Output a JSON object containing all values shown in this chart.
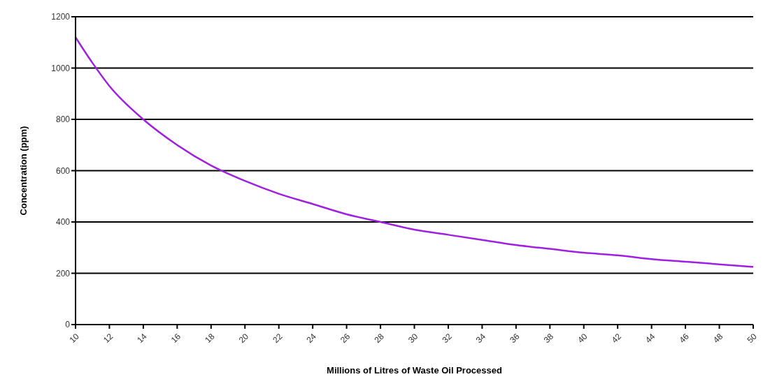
{
  "chart_data": {
    "type": "line",
    "xlabel": "Millions of Litres of Waste Oil Processed",
    "ylabel": "Concentration (ppm)",
    "x": [
      10,
      11,
      12,
      14,
      16,
      18,
      20,
      22,
      24,
      26,
      28,
      30,
      32,
      34,
      36,
      38,
      40,
      42,
      44,
      46,
      48,
      50
    ],
    "series": [
      {
        "color": "#a020e0",
        "values": [
          1120,
          1020,
          930,
          800,
          700,
          620,
          560,
          510,
          470,
          430,
          400,
          370,
          350,
          330,
          310,
          295,
          280,
          270,
          255,
          245,
          235,
          225
        ]
      }
    ],
    "xlim": [
      10,
      50
    ],
    "xticks": [
      10,
      12,
      14,
      16,
      18,
      20,
      22,
      24,
      26,
      28,
      30,
      32,
      34,
      36,
      38,
      40,
      42,
      44,
      46,
      48,
      50
    ],
    "ylim": [
      0,
      1200
    ],
    "yticks": [
      0,
      200,
      400,
      600,
      800,
      1000,
      1200
    ],
    "grid": "y",
    "marker": "none",
    "line_style": "solid"
  }
}
